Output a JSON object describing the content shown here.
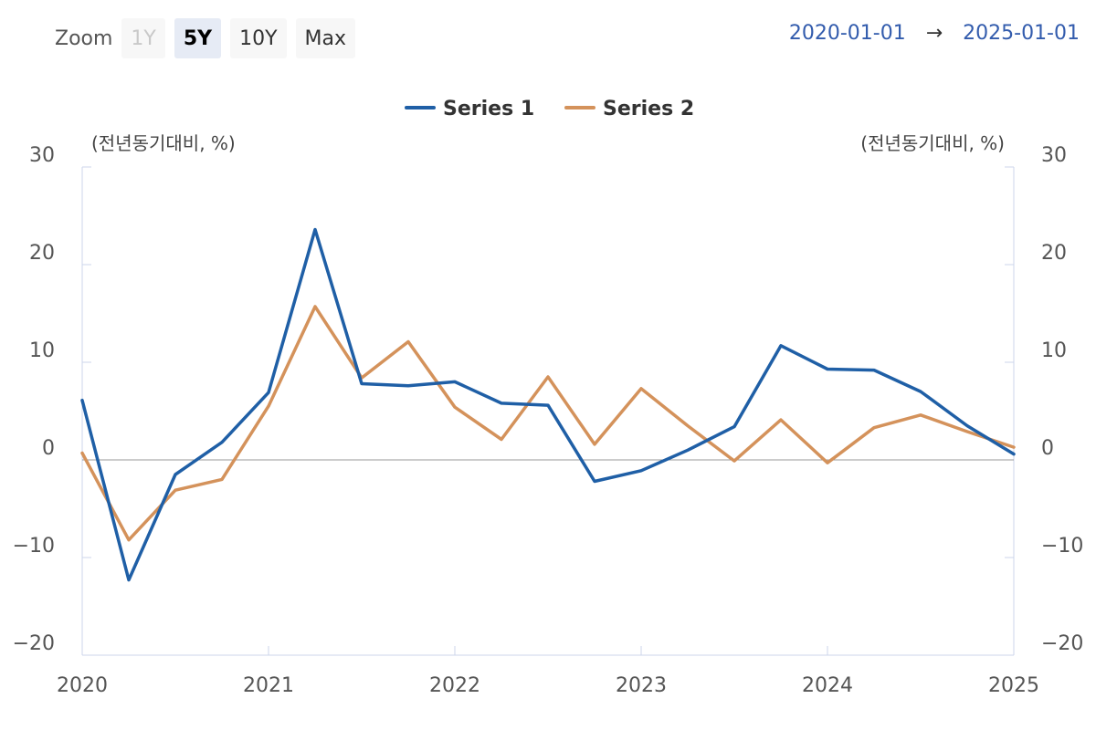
{
  "toolbar": {
    "zoom_label": "Zoom",
    "buttons": [
      {
        "label": "1Y",
        "state": "disabled"
      },
      {
        "label": "5Y",
        "state": "active"
      },
      {
        "label": "10Y",
        "state": "normal"
      },
      {
        "label": "Max",
        "state": "normal"
      }
    ],
    "range_from": "2020-01-01",
    "range_arrow": "→",
    "range_to": "2025-01-01"
  },
  "colors": {
    "series1": "#1f5fa6",
    "series2": "#d4925b",
    "range_text": "#335cad"
  },
  "chart_data": {
    "type": "line",
    "ylabel_left": "(전년동기대비, %)",
    "ylabel_right": "(전년동기대비, %)",
    "ylim": [
      -20,
      30
    ],
    "yticks": [
      "30",
      "20",
      "10",
      "0",
      "−10",
      "−20"
    ],
    "xticks": [
      "2020",
      "2021",
      "2022",
      "2023",
      "2024",
      "2025"
    ],
    "legend_position": "top-center",
    "x": [
      "2020-01",
      "2020-04",
      "2020-07",
      "2020-10",
      "2021-01",
      "2021-04",
      "2021-07",
      "2021-10",
      "2022-01",
      "2022-04",
      "2022-07",
      "2022-10",
      "2023-01",
      "2023-04",
      "2023-07",
      "2023-10",
      "2024-01",
      "2024-04",
      "2024-07",
      "2024-10",
      "2025-01"
    ],
    "series": [
      {
        "name": "Series 1",
        "values": [
          6.1,
          -12.3,
          -1.5,
          1.8,
          6.9,
          23.6,
          7.8,
          7.6,
          8.0,
          5.8,
          5.6,
          -2.2,
          -1.1,
          1.0,
          3.4,
          11.7,
          9.3,
          9.2,
          7.0,
          3.5,
          0.6
        ]
      },
      {
        "name": "Series 2",
        "values": [
          0.7,
          -8.2,
          -3.1,
          -2.0,
          5.5,
          15.7,
          8.4,
          12.1,
          5.4,
          2.1,
          8.5,
          1.6,
          7.3,
          3.5,
          -0.1,
          4.1,
          -0.3,
          3.3,
          4.6,
          2.9,
          1.3
        ]
      }
    ]
  }
}
